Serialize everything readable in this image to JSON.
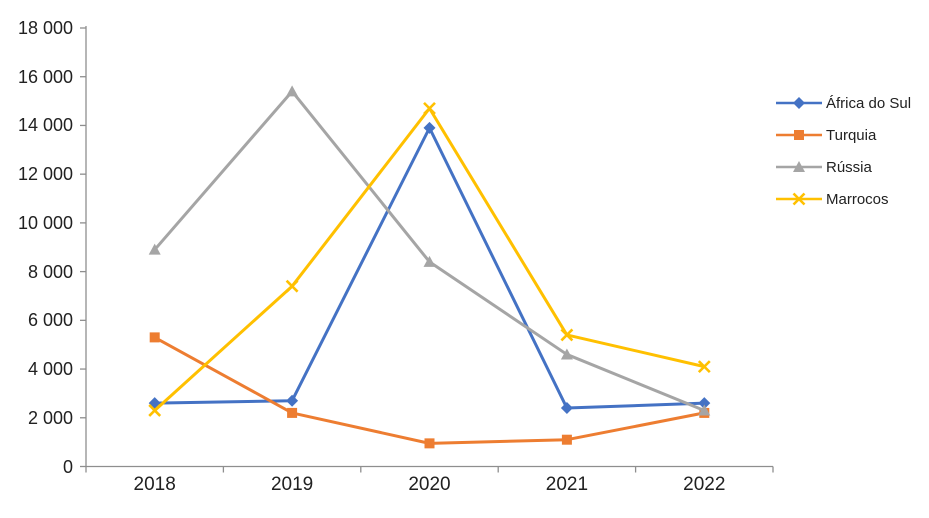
{
  "chart_data": {
    "type": "line",
    "title": "",
    "categories": [
      "2018",
      "2019",
      "2020",
      "2021",
      "2022"
    ],
    "series": [
      {
        "name": "África do Sul",
        "color": "#4472C4",
        "marker": "diamond",
        "values": [
          2600,
          2700,
          13900,
          2400,
          2600
        ]
      },
      {
        "name": "Turquia",
        "color": "#ED7D31",
        "marker": "square",
        "values": [
          5300,
          2200,
          950,
          1100,
          2200
        ]
      },
      {
        "name": "Rússia",
        "color": "#A5A5A5",
        "marker": "triangle",
        "values": [
          8900,
          15400,
          8400,
          4600,
          2300
        ]
      },
      {
        "name": "Marrocos",
        "color": "#FFC000",
        "marker": "x",
        "values": [
          2300,
          7400,
          14700,
          5400,
          4100
        ]
      }
    ],
    "xlabel": "",
    "ylabel": "",
    "ylim": [
      0,
      18000
    ],
    "ytick_step": 2000,
    "ytick_labels": [
      "0",
      "2 000",
      "4 000",
      "6 000",
      "8 000",
      "10 000",
      "12 000",
      "14 000",
      "16 000",
      "18 000"
    ],
    "grid": "off",
    "legend_position": "right"
  },
  "style": {
    "axis_color": "#8e8e8e",
    "label_color": "#212121",
    "background": "#ffffff",
    "line_width": 3
  }
}
